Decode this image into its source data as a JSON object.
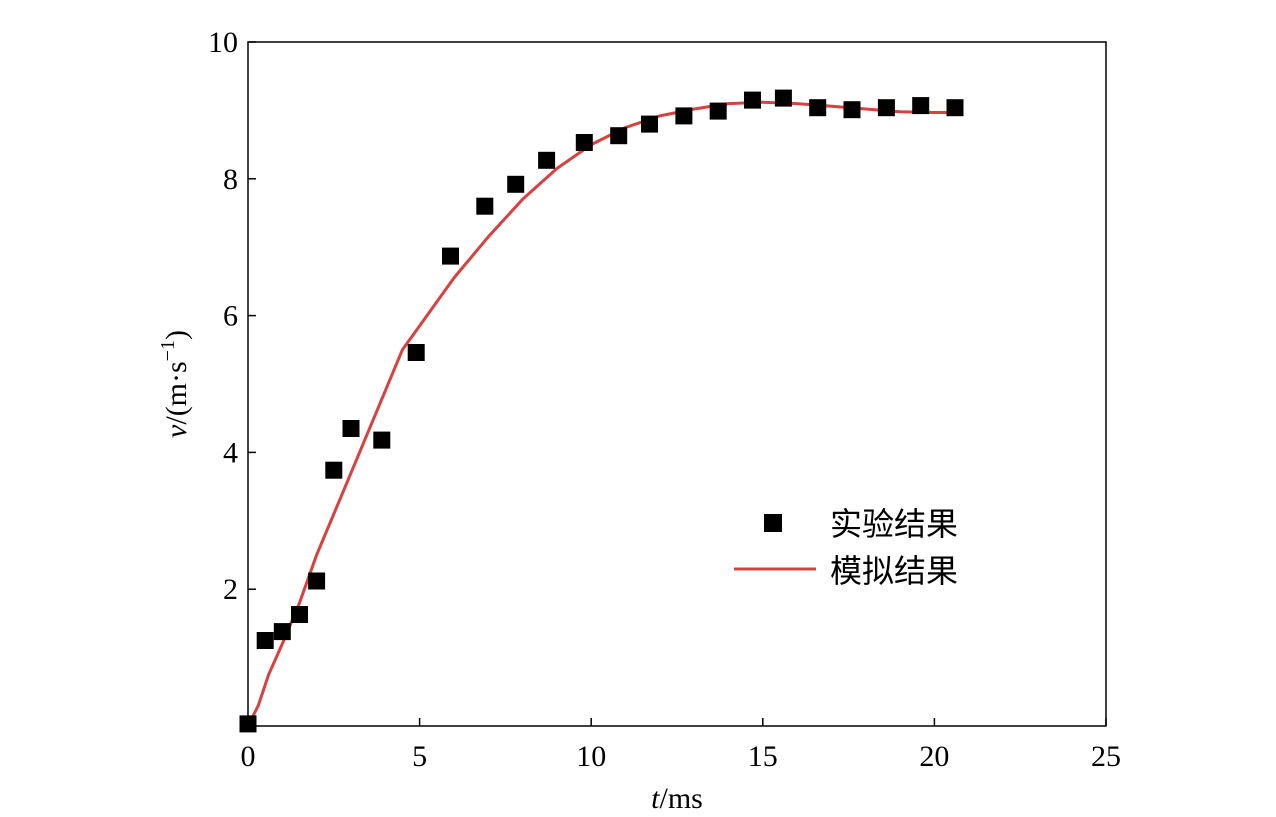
{
  "chart_data": {
    "type": "scatter",
    "xlabel_var": "t",
    "xlabel_unit": "/ms",
    "ylabel_var": "v",
    "ylabel_unit_pre": "/(m·s",
    "ylabel_unit_sup": "−1",
    "ylabel_unit_post": ")",
    "xlim": [
      0,
      25
    ],
    "ylim": [
      0,
      10
    ],
    "xticks": [
      0,
      5,
      10,
      15,
      20,
      25
    ],
    "yticks": [
      2,
      4,
      6,
      8,
      10
    ],
    "grid": false,
    "legend_position": "center-right",
    "series": [
      {
        "name": "实验结果",
        "kind": "scatter",
        "marker": "square",
        "color": "#000000",
        "x": [
          0.0,
          0.5,
          1.0,
          1.5,
          2.0,
          2.5,
          3.0,
          3.9,
          4.9,
          5.9,
          6.9,
          7.8,
          8.7,
          9.8,
          10.8,
          11.7,
          12.7,
          13.7,
          14.7,
          15.6,
          16.6,
          17.6,
          18.6,
          19.6,
          20.6
        ],
        "y": [
          0.03,
          1.25,
          1.38,
          1.63,
          2.12,
          3.74,
          4.35,
          4.18,
          5.46,
          6.87,
          7.6,
          7.92,
          8.27,
          8.53,
          8.63,
          8.8,
          8.92,
          8.99,
          9.15,
          9.18,
          9.04,
          9.01,
          9.04,
          9.07,
          9.04
        ]
      },
      {
        "name": "模拟结果",
        "kind": "line",
        "color": "#d94040",
        "x": [
          0.0,
          0.3,
          0.6,
          1.0,
          1.5,
          2.0,
          2.5,
          3.0,
          3.5,
          4.0,
          4.5,
          5.0,
          6.0,
          7.0,
          8.0,
          9.0,
          10.0,
          11.0,
          12.0,
          13.0,
          14.0,
          15.0,
          16.0,
          17.0,
          18.0,
          19.0,
          20.0,
          20.6
        ],
        "y": [
          0.0,
          0.3,
          0.75,
          1.2,
          1.8,
          2.5,
          3.1,
          3.7,
          4.3,
          4.9,
          5.5,
          5.85,
          6.55,
          7.15,
          7.7,
          8.15,
          8.5,
          8.75,
          8.92,
          9.02,
          9.1,
          9.12,
          9.1,
          9.06,
          9.02,
          8.98,
          8.97,
          8.97
        ]
      }
    ]
  }
}
